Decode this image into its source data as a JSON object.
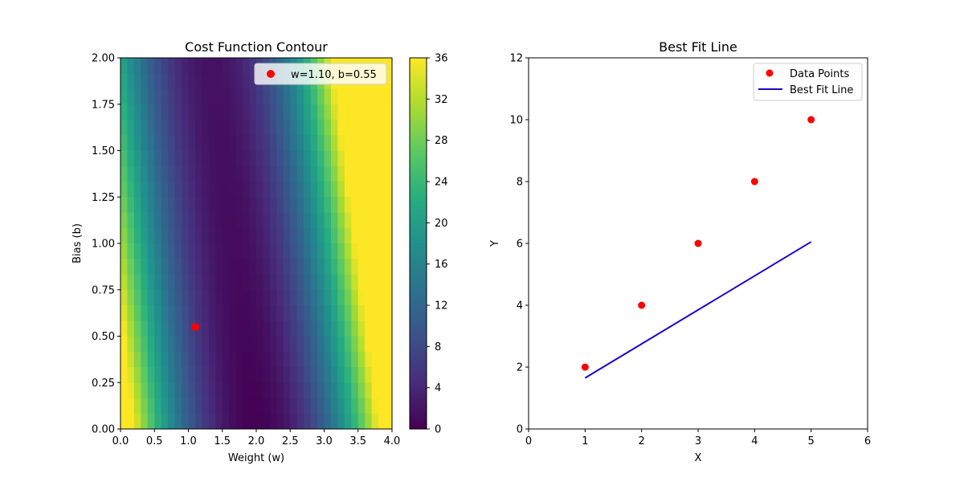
{
  "chart_data": [
    {
      "type": "heatmap",
      "title": "Cost Function Contour",
      "xlabel": "Weight (w)",
      "ylabel": "Bias (b)",
      "xlim": [
        0,
        4
      ],
      "ylim": [
        0,
        2
      ],
      "xticks": [
        "0.0",
        "0.5",
        "1.0",
        "1.5",
        "2.0",
        "2.5",
        "3.0",
        "3.5",
        "4.0"
      ],
      "yticks": [
        "0.00",
        "0.25",
        "0.50",
        "0.75",
        "1.00",
        "1.25",
        "1.50",
        "1.75",
        "2.00"
      ],
      "colorbar": {
        "colormap": "viridis",
        "range": [
          0,
          36
        ],
        "ticks": [
          "0",
          "4",
          "8",
          "12",
          "16",
          "20",
          "24",
          "28",
          "32",
          "36"
        ]
      },
      "marker": {
        "w": 1.1,
        "b": 0.55,
        "label": "w=1.10, b=0.55",
        "color": "#ff0000"
      },
      "legend_position": "top-right"
    },
    {
      "type": "scatter",
      "title": "Best Fit Line",
      "xlabel": "X",
      "ylabel": "Y",
      "xlim": [
        0,
        6
      ],
      "ylim": [
        0,
        12
      ],
      "xticks": [
        "0",
        "1",
        "2",
        "3",
        "4",
        "5",
        "6"
      ],
      "yticks": [
        "0",
        "2",
        "4",
        "6",
        "8",
        "10",
        "12"
      ],
      "series": [
        {
          "name": "Data Points",
          "kind": "scatter",
          "color": "#ff0000",
          "x": [
            1,
            2,
            3,
            4,
            5
          ],
          "y": [
            2,
            4,
            6,
            8,
            10
          ]
        },
        {
          "name": "Best Fit Line",
          "kind": "line",
          "color": "#2200cc",
          "x": [
            1,
            5
          ],
          "y": [
            1.65,
            6.05
          ]
        }
      ],
      "legend_position": "top-right"
    }
  ]
}
